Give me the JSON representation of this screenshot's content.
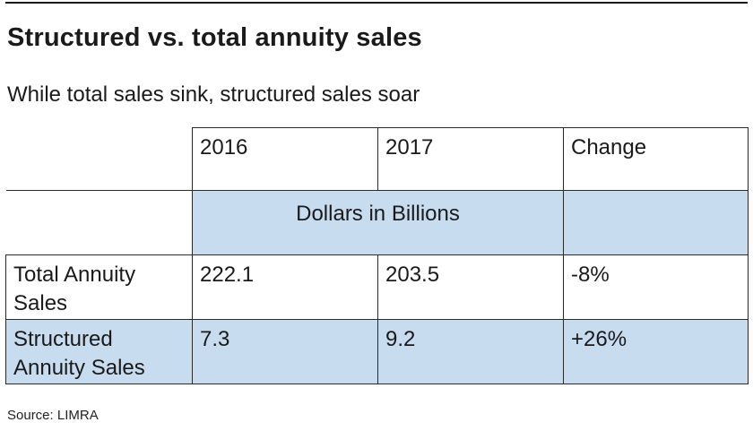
{
  "header": {
    "title": "Structured vs. total annuity sales",
    "subtitle": "While total sales sink, structured sales soar"
  },
  "chart_data": {
    "type": "table",
    "columns": [
      "",
      "2016",
      "2017",
      "Change"
    ],
    "units_label": "Dollars in Billions",
    "rows": [
      {
        "label": "Total Annuity Sales",
        "values": [
          "222.1",
          "203.5",
          "-8%"
        ]
      },
      {
        "label": "Structured Annuity Sales",
        "values": [
          "7.3",
          "9.2",
          "+26%"
        ]
      }
    ]
  },
  "footer": {
    "source": "Source: LIMRA"
  },
  "colors": {
    "row_shade": "#c8dcf0",
    "rule": "#1a1a1a"
  }
}
